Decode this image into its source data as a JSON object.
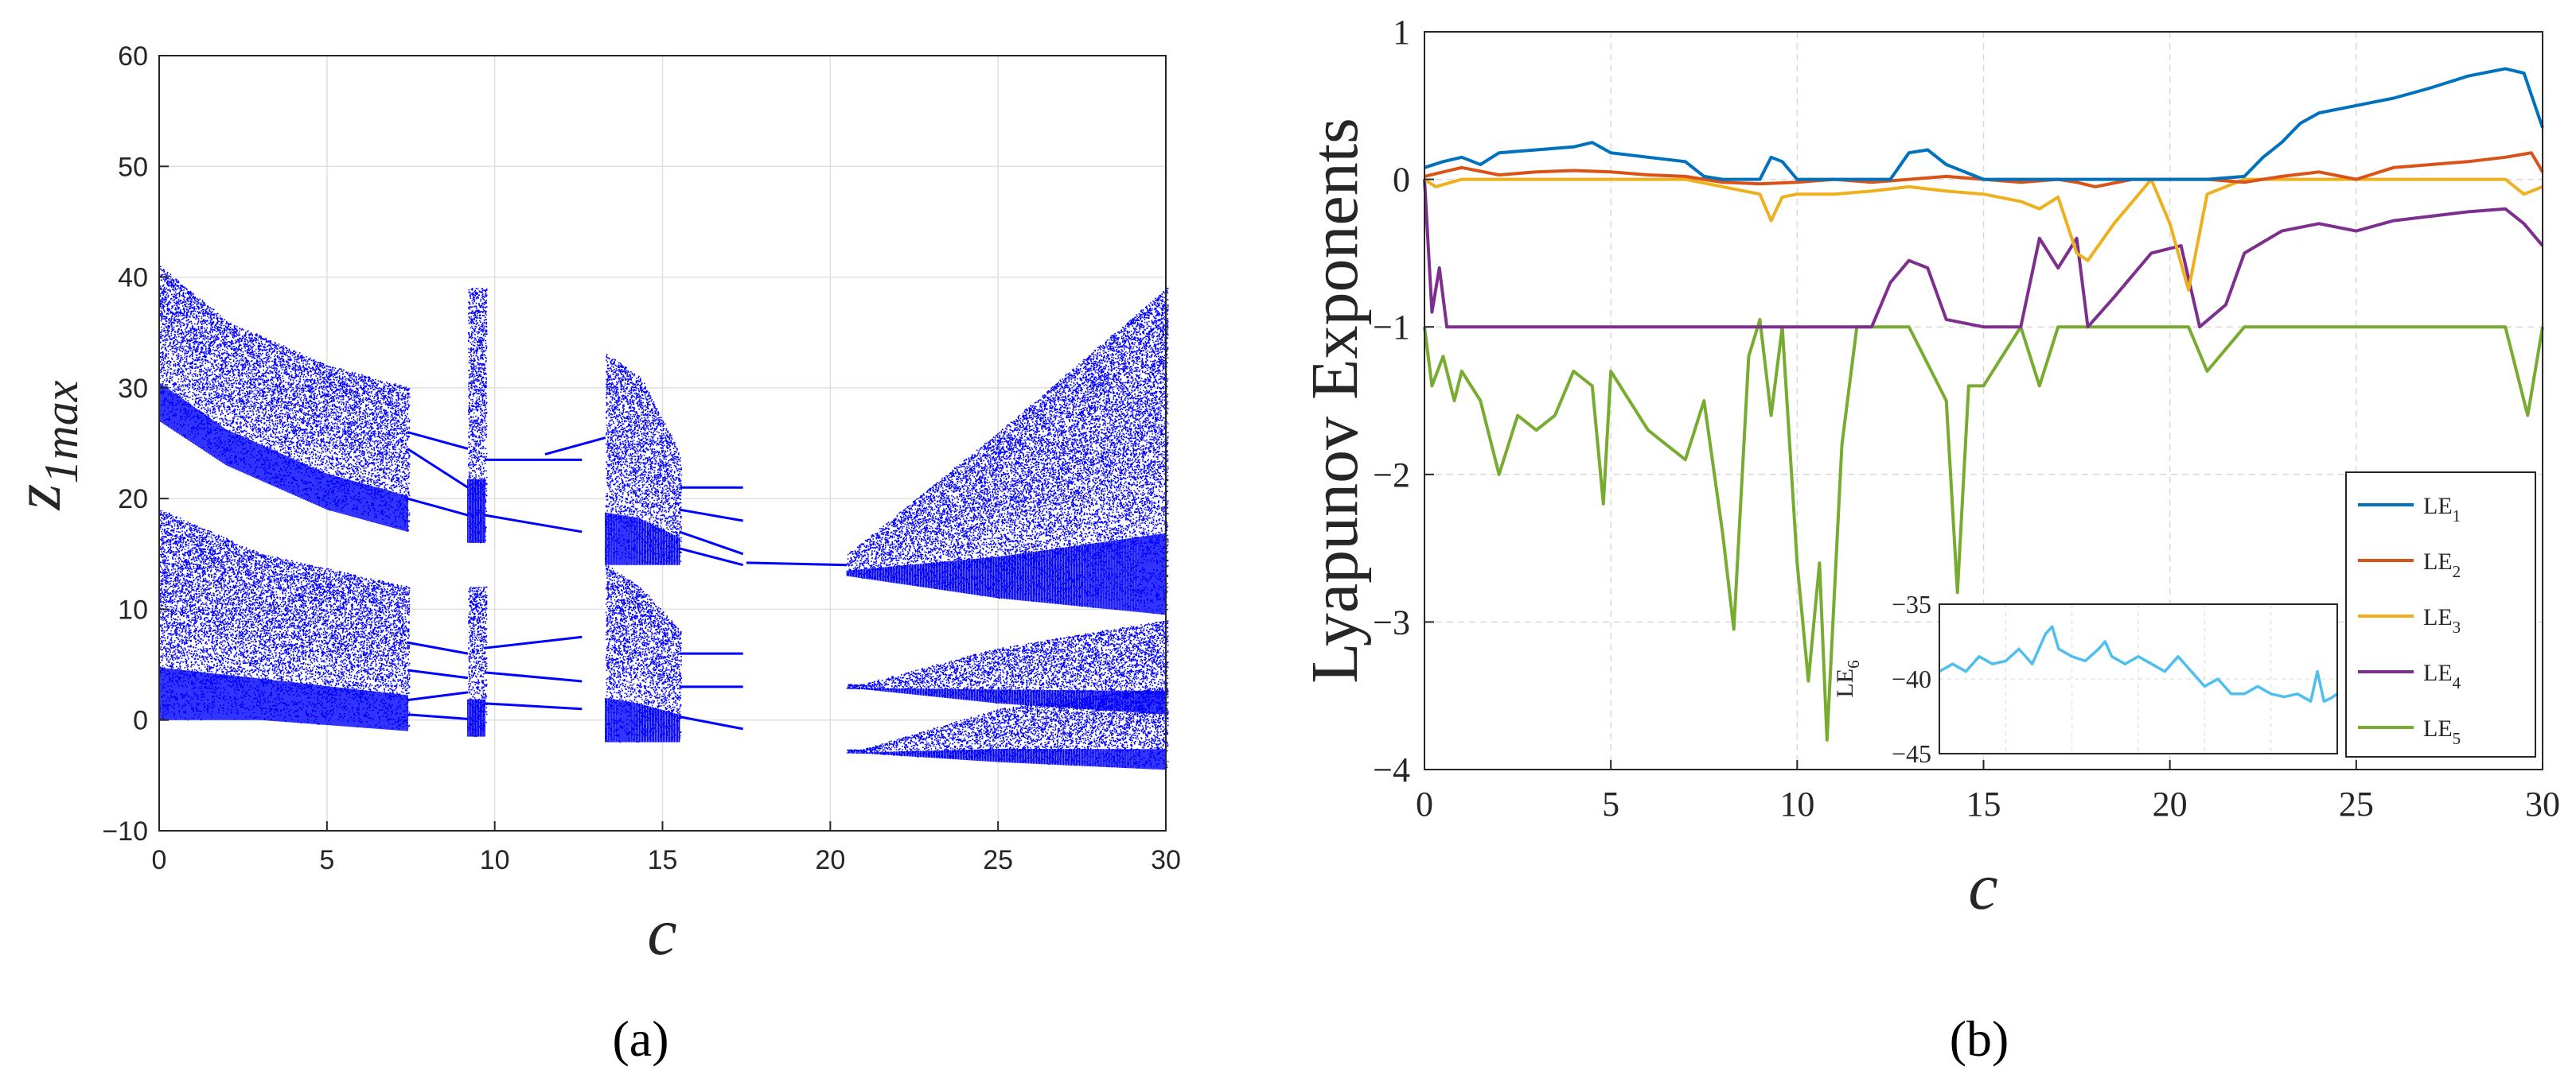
{
  "panel_labels": {
    "a": "(a)",
    "b": "(b)"
  },
  "colors": {
    "bifurcation": "#0000ff",
    "LE1": "#0072BD",
    "LE2": "#D95319",
    "LE3": "#EDB120",
    "LE4": "#7E2F8E",
    "LE5": "#77AC30",
    "LE6": "#4DBEEE"
  },
  "chart_data": [
    {
      "type": "scatter",
      "title": "",
      "xlabel": "c",
      "ylabel_main": "z",
      "ylabel_sub": "1max",
      "xlim": [
        0,
        30
      ],
      "ylim": [
        -10,
        60
      ],
      "xticks": [
        0,
        5,
        10,
        15,
        20,
        25,
        30
      ],
      "yticks": [
        60,
        50,
        40,
        30,
        20,
        10,
        0,
        -10
      ],
      "ytick_labels": [
        "60",
        "50",
        "40",
        "30",
        "20",
        "10",
        "0",
        "−10"
      ],
      "grid": true,
      "bands": [
        {
          "c": [
            0,
            7.4
          ],
          "upper": [
            [
              0,
              41,
              27
            ],
            [
              2,
              36,
              23
            ],
            [
              5,
              32,
              19
            ],
            [
              7.4,
              30,
              17
            ]
          ],
          "lower": [
            [
              0,
              19,
              0
            ],
            [
              3,
              15,
              0
            ],
            [
              7.4,
              12,
              -1
            ]
          ]
        },
        {
          "c": [
            9.2,
            9.7
          ],
          "upper": [
            [
              9.2,
              39,
              16
            ],
            [
              9.7,
              39,
              16
            ]
          ],
          "lower": [
            [
              9.2,
              12,
              -1.5
            ],
            [
              9.7,
              12,
              -1.5
            ]
          ]
        },
        {
          "c": [
            13.3,
            15.5
          ],
          "upper": [
            [
              13.3,
              33,
              14
            ],
            [
              14.3,
              31,
              14
            ],
            [
              15.5,
              24,
              14
            ]
          ],
          "lower": [
            [
              13.3,
              14,
              -2
            ],
            [
              14.3,
              12,
              -2
            ],
            [
              15.5,
              8,
              -2
            ]
          ]
        },
        {
          "c": [
            20.5,
            30
          ],
          "upper": [
            [
              20.5,
              15,
              13
            ],
            [
              25,
              26,
              11
            ],
            [
              30,
              39,
              9.5
            ]
          ],
          "lower": [
            [
              20.9,
              3.2,
              2.8
            ],
            [
              25,
              6.5,
              1.5
            ],
            [
              30,
              9,
              0.5
            ]
          ],
          "lowest": [
            [
              20.9,
              -2.7,
              -3.0
            ],
            [
              25,
              1.0,
              -3.8
            ],
            [
              30,
              3,
              -4.5
            ]
          ]
        }
      ],
      "branches": [
        {
          "c": [
            7.4,
            9.2
          ],
          "z": [
            26,
            24.5
          ]
        },
        {
          "c": [
            7.4,
            9.2
          ],
          "z": [
            24.5,
            21
          ]
        },
        {
          "c": [
            7.4,
            9.2
          ],
          "z": [
            20,
            18.5
          ]
        },
        {
          "c": [
            7.4,
            9.2
          ],
          "z": [
            7,
            6
          ]
        },
        {
          "c": [
            7.4,
            9.2
          ],
          "z": [
            4.5,
            3.8
          ]
        },
        {
          "c": [
            7.4,
            9.2
          ],
          "z": [
            1.8,
            2.5
          ]
        },
        {
          "c": [
            7.4,
            9.2
          ],
          "z": [
            0.5,
            0.1
          ]
        },
        {
          "c": [
            9.7,
            12.6
          ],
          "z": [
            23.5,
            23.5
          ]
        },
        {
          "c": [
            9.7,
            12.6
          ],
          "z": [
            18.5,
            17
          ]
        },
        {
          "c": [
            9.7,
            12.6
          ],
          "z": [
            6.5,
            7.5
          ]
        },
        {
          "c": [
            9.7,
            12.6
          ],
          "z": [
            4.3,
            3.5
          ]
        },
        {
          "c": [
            9.7,
            12.6
          ],
          "z": [
            1.5,
            1
          ]
        },
        {
          "c": [
            11.5,
            13.3
          ],
          "z": [
            24,
            25.5
          ]
        },
        {
          "c": [
            15.5,
            17.4
          ],
          "z": [
            21,
            21
          ]
        },
        {
          "c": [
            15.5,
            17.4
          ],
          "z": [
            19,
            18
          ]
        },
        {
          "c": [
            15.5,
            17.4
          ],
          "z": [
            17,
            15
          ]
        },
        {
          "c": [
            15.5,
            17.4
          ],
          "z": [
            15.5,
            14
          ]
        },
        {
          "c": [
            15.5,
            17.4
          ],
          "z": [
            6,
            6
          ]
        },
        {
          "c": [
            15.5,
            17.4
          ],
          "z": [
            3,
            3
          ]
        },
        {
          "c": [
            15.5,
            17.4
          ],
          "z": [
            0.3,
            -0.8
          ]
        },
        {
          "c": [
            17.5,
            20.5
          ],
          "z": [
            14.2,
            14
          ]
        }
      ]
    },
    {
      "type": "line",
      "title": "",
      "xlabel": "c",
      "ylabel": "Lyapunov Exponents",
      "xlim": [
        0,
        30
      ],
      "ylim": [
        -4,
        1
      ],
      "xticks": [
        0,
        5,
        10,
        15,
        20,
        25,
        30
      ],
      "yticks": [
        1,
        0,
        -1,
        -2,
        -3,
        -4
      ],
      "ytick_labels": [
        "1",
        "0",
        "−1",
        "−2",
        "−3",
        "−4"
      ],
      "grid": true,
      "legend": {
        "placement": "lower-right",
        "entries": [
          "LE1",
          "LE2",
          "LE3",
          "LE4",
          "LE5"
        ]
      },
      "series": [
        {
          "name": "LE",
          "sub": "1",
          "x": [
            0,
            0.5,
            1,
            1.5,
            2,
            3,
            4,
            4.5,
            5,
            6,
            7,
            7.5,
            8,
            9,
            9.3,
            9.6,
            10,
            11,
            12,
            12.5,
            13,
            13.5,
            14,
            15,
            16,
            17,
            18,
            19,
            20,
            21,
            22,
            22.5,
            23,
            23.5,
            24,
            25,
            26,
            27,
            28,
            29,
            29.5,
            30
          ],
          "y": [
            0.08,
            0.12,
            0.15,
            0.1,
            0.18,
            0.2,
            0.22,
            0.25,
            0.18,
            0.15,
            0.12,
            0.02,
            0.0,
            0.0,
            0.15,
            0.12,
            0.0,
            0.0,
            0.0,
            0.0,
            0.18,
            0.2,
            0.1,
            0.0,
            0.0,
            0.0,
            0.0,
            0.0,
            0.0,
            0.0,
            0.02,
            0.15,
            0.25,
            0.38,
            0.45,
            0.5,
            0.55,
            0.62,
            0.7,
            0.75,
            0.72,
            0.35
          ]
        },
        {
          "name": "LE",
          "sub": "2",
          "x": [
            0,
            0.5,
            1,
            2,
            3,
            4,
            5,
            6,
            7,
            7.5,
            8,
            9,
            10,
            11,
            12,
            13,
            14,
            15,
            16,
            17,
            17.5,
            18,
            19,
            20,
            21,
            22,
            23,
            24,
            25,
            26,
            27,
            28,
            29,
            29.7,
            30
          ],
          "y": [
            0.02,
            0.05,
            0.08,
            0.03,
            0.05,
            0.06,
            0.05,
            0.03,
            0.02,
            0.0,
            -0.02,
            -0.03,
            -0.02,
            0.0,
            -0.02,
            0.0,
            0.02,
            0.0,
            -0.02,
            0.0,
            -0.02,
            -0.05,
            0.0,
            0.0,
            0.0,
            -0.02,
            0.02,
            0.05,
            0.0,
            0.08,
            0.1,
            0.12,
            0.15,
            0.18,
            0.05
          ]
        },
        {
          "name": "LE",
          "sub": "3",
          "x": [
            0,
            0.3,
            1,
            3,
            5,
            7,
            8,
            9,
            9.3,
            9.6,
            10,
            11,
            12,
            13,
            14,
            15,
            16,
            16.5,
            17,
            17.5,
            17.8,
            18.5,
            19.5,
            20,
            20.5,
            21,
            22,
            23,
            24,
            25,
            26,
            27,
            28,
            29,
            29.5,
            30
          ],
          "y": [
            0.0,
            -0.05,
            0.0,
            0.0,
            0.0,
            0.0,
            -0.05,
            -0.1,
            -0.28,
            -0.12,
            -0.1,
            -0.1,
            -0.08,
            -0.05,
            -0.08,
            -0.1,
            -0.15,
            -0.2,
            -0.12,
            -0.5,
            -0.55,
            -0.3,
            0.0,
            -0.3,
            -0.75,
            -0.1,
            0.0,
            0.0,
            0.0,
            0.0,
            0.0,
            0.0,
            0.0,
            0.0,
            -0.1,
            -0.05
          ]
        },
        {
          "name": "LE",
          "sub": "4",
          "x": [
            0,
            0.2,
            0.4,
            0.6,
            1,
            3,
            5,
            7,
            8,
            9,
            10,
            11,
            12,
            12.5,
            13,
            13.5,
            14,
            15,
            16,
            16.5,
            17,
            17.5,
            17.8,
            18.5,
            19.5,
            20.3,
            20.8,
            21.5,
            22,
            23,
            24,
            25,
            26,
            27,
            28,
            29,
            29.5,
            30
          ],
          "y": [
            0.0,
            -0.9,
            -0.6,
            -1.0,
            -1.0,
            -1.0,
            -1.0,
            -1.0,
            -1.0,
            -1.0,
            -1.0,
            -1.0,
            -1.0,
            -0.7,
            -0.55,
            -0.6,
            -0.95,
            -1.0,
            -1.0,
            -0.4,
            -0.6,
            -0.4,
            -1.0,
            -0.8,
            -0.5,
            -0.45,
            -1.0,
            -0.85,
            -0.5,
            -0.35,
            -0.3,
            -0.35,
            -0.28,
            -0.25,
            -0.22,
            -0.2,
            -0.3,
            -0.45
          ]
        },
        {
          "name": "LE",
          "sub": "5",
          "x": [
            0,
            0.2,
            0.5,
            0.8,
            1,
            1.5,
            2,
            2.5,
            3,
            3.5,
            4,
            4.5,
            4.8,
            5,
            5.5,
            6,
            6.5,
            7,
            7.5,
            8,
            8.3,
            8.7,
            9,
            9.3,
            9.6,
            10,
            10.3,
            10.6,
            10.8,
            11.2,
            11.6,
            12,
            12.5,
            13,
            14,
            14.3,
            14.6,
            15,
            16,
            16.5,
            17,
            18,
            19,
            20,
            20.5,
            21,
            22,
            23,
            24,
            25,
            26,
            27,
            28,
            29,
            29.6,
            30
          ],
          "y": [
            -1.0,
            -1.4,
            -1.2,
            -1.5,
            -1.3,
            -1.5,
            -2.0,
            -1.6,
            -1.7,
            -1.6,
            -1.3,
            -1.4,
            -2.2,
            -1.3,
            -1.5,
            -1.7,
            -1.8,
            -1.9,
            -1.5,
            -2.4,
            -3.05,
            -1.2,
            -0.95,
            -1.6,
            -1.0,
            -2.6,
            -3.4,
            -2.6,
            -3.8,
            -1.8,
            -1.0,
            -1.0,
            -1.0,
            -1.0,
            -1.5,
            -2.8,
            -1.4,
            -1.4,
            -1.0,
            -1.4,
            -1.0,
            -1.0,
            -1.0,
            -1.0,
            -1.0,
            -1.3,
            -1.0,
            -1.0,
            -1.0,
            -1.0,
            -1.0,
            -1.0,
            -1.0,
            -1.0,
            -1.6,
            -1.0
          ]
        }
      ],
      "inset": {
        "ylabel": "LE",
        "ylabel_sub": "6",
        "xlim": [
          0,
          30
        ],
        "ylim": [
          -45,
          -35
        ],
        "yticks": [
          -35,
          -40,
          -45
        ],
        "ytick_labels": [
          "−35",
          "−40",
          "−45"
        ],
        "series": [
          {
            "name": "LE6",
            "x": [
              0,
              1,
              2,
              3,
              4,
              5,
              6,
              7,
              8,
              8.5,
              9,
              10,
              11,
              12,
              12.5,
              13,
              14,
              15,
              16,
              17,
              18,
              19,
              20,
              21,
              22,
              23,
              24,
              25,
              26,
              27,
              28,
              28.5,
              29,
              29.5,
              30
            ],
            "y": [
              -39.5,
              -39,
              -39.5,
              -38.5,
              -39,
              -38.8,
              -38,
              -39,
              -37,
              -36.5,
              -38,
              -38.5,
              -38.8,
              -38,
              -37.5,
              -38.5,
              -39,
              -38.5,
              -39,
              -39.5,
              -38.5,
              -39.5,
              -40.5,
              -40,
              -41,
              -41,
              -40.5,
              -41,
              -41.2,
              -41,
              -41.5,
              -39.5,
              -41.5,
              -41.3,
              -41
            ]
          }
        ]
      }
    }
  ]
}
